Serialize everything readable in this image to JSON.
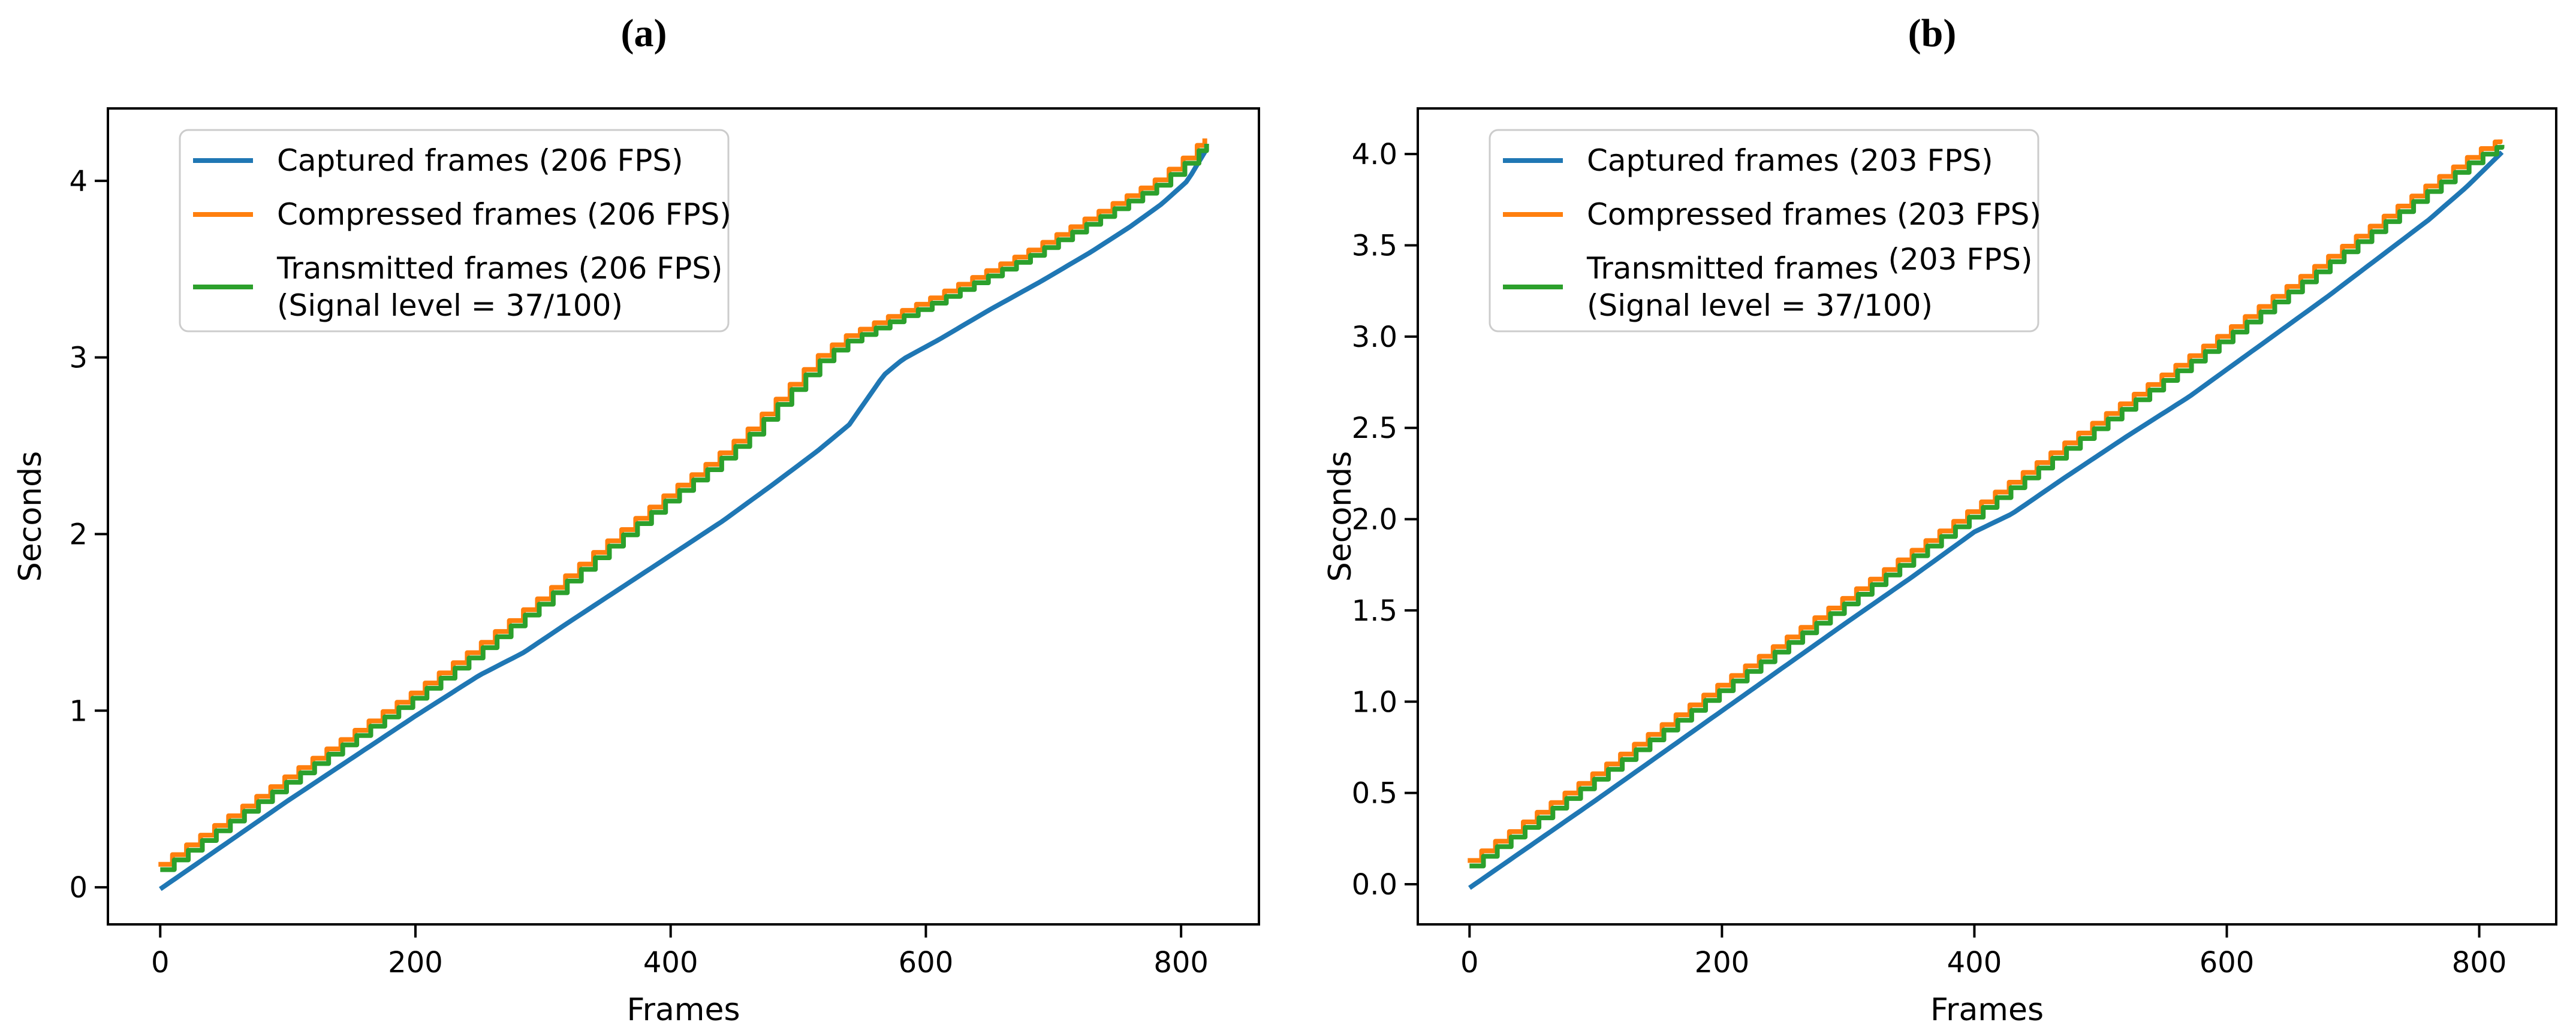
{
  "figure": {
    "background": "#ffffff",
    "text_color": "#000000",
    "spine_color": "#000000",
    "legend_border_color": "#cccccc",
    "legend_fill_color": "#ffffff"
  },
  "chart_data": [
    {
      "type": "line",
      "title": "(a)",
      "xlabel": "Frames",
      "ylabel": "Seconds",
      "xlim": [
        -41,
        861
      ],
      "ylim": [
        -0.21,
        4.41
      ],
      "grid": false,
      "legend_position": "upper left",
      "step_frames": 11,
      "xticks": [
        {
          "value": 0,
          "label": "0"
        },
        {
          "value": 200,
          "label": "200"
        },
        {
          "value": 400,
          "label": "400"
        },
        {
          "value": 600,
          "label": "600"
        },
        {
          "value": 800,
          "label": "800"
        }
      ],
      "yticks": [
        {
          "value": 0,
          "label": "0"
        },
        {
          "value": 1,
          "label": "1"
        },
        {
          "value": 2,
          "label": "2"
        },
        {
          "value": 3,
          "label": "3"
        },
        {
          "value": 4,
          "label": "4"
        }
      ],
      "legend": [
        {
          "color": "#1f77b4",
          "lines": [
            {
              "text": "Captured frames (206 FPS)"
            }
          ]
        },
        {
          "color": "#ff7f0e",
          "lines": [
            {
              "text": "Compressed frames (206 FPS)"
            }
          ]
        },
        {
          "color": "#2ca02c",
          "lines": [
            {
              "text": "Transmitted frames (206 FPS)"
            },
            {
              "text": "(Signal level = 37/100)"
            }
          ]
        }
      ],
      "series": [
        {
          "key": "captured",
          "name": "Captured frames (206 FPS)",
          "color": "#1f77b4",
          "style": "line",
          "points": [
            [
              0,
              -0.01
            ],
            [
              50,
              0.24
            ],
            [
              100,
              0.49
            ],
            [
              150,
              0.73
            ],
            [
              200,
              0.97
            ],
            [
              250,
              1.2
            ],
            [
              285,
              1.33
            ],
            [
              320,
              1.5
            ],
            [
              360,
              1.69
            ],
            [
              400,
              1.88
            ],
            [
              440,
              2.07
            ],
            [
              480,
              2.28
            ],
            [
              515,
              2.47
            ],
            [
              540,
              2.62
            ],
            [
              567,
              2.9
            ],
            [
              582,
              2.99
            ],
            [
              610,
              3.1
            ],
            [
              650,
              3.27
            ],
            [
              690,
              3.43
            ],
            [
              730,
              3.6
            ],
            [
              760,
              3.74
            ],
            [
              785,
              3.87
            ],
            [
              805,
              4.0
            ],
            [
              820,
              4.18
            ]
          ]
        },
        {
          "key": "compressed",
          "name": "Compressed frames (206 FPS)",
          "color": "#ff7f0e",
          "style": "steps",
          "points": [
            [
              0,
              0.13
            ],
            [
              50,
              0.38
            ],
            [
              100,
              0.63
            ],
            [
              150,
              0.87
            ],
            [
              200,
              1.11
            ],
            [
              250,
              1.37
            ],
            [
              300,
              1.65
            ],
            [
              350,
              1.95
            ],
            [
              400,
              2.24
            ],
            [
              430,
              2.4
            ],
            [
              460,
              2.58
            ],
            [
              490,
              2.81
            ],
            [
              515,
              3.0
            ],
            [
              535,
              3.11
            ],
            [
              565,
              3.21
            ],
            [
              600,
              3.32
            ],
            [
              640,
              3.46
            ],
            [
              680,
              3.6
            ],
            [
              720,
              3.76
            ],
            [
              755,
              3.9
            ],
            [
              780,
              4.0
            ],
            [
              800,
              4.11
            ],
            [
              820,
              4.24
            ]
          ]
        },
        {
          "key": "transmitted",
          "name": "Transmitted frames (206 FPS) (Signal level = 37/100)",
          "color": "#2ca02c",
          "style": "steps",
          "points": [
            [
              0,
              0.1
            ],
            [
              50,
              0.35
            ],
            [
              100,
              0.6
            ],
            [
              150,
              0.84
            ],
            [
              200,
              1.08
            ],
            [
              250,
              1.34
            ],
            [
              300,
              1.62
            ],
            [
              350,
              1.92
            ],
            [
              400,
              2.21
            ],
            [
              430,
              2.37
            ],
            [
              460,
              2.55
            ],
            [
              490,
              2.78
            ],
            [
              515,
              2.97
            ],
            [
              535,
              3.08
            ],
            [
              565,
              3.18
            ],
            [
              600,
              3.29
            ],
            [
              640,
              3.43
            ],
            [
              680,
              3.57
            ],
            [
              720,
              3.73
            ],
            [
              755,
              3.87
            ],
            [
              780,
              3.97
            ],
            [
              800,
              4.08
            ],
            [
              820,
              4.21
            ]
          ]
        }
      ]
    },
    {
      "type": "line",
      "title": "(b)",
      "xlabel": "Frames",
      "ylabel": "Seconds",
      "xlim": [
        -41,
        861
      ],
      "ylim": [
        -0.22,
        4.25
      ],
      "grid": false,
      "legend_position": "upper left",
      "step_frames": 11,
      "xticks": [
        {
          "value": 0,
          "label": "0"
        },
        {
          "value": 200,
          "label": "200"
        },
        {
          "value": 400,
          "label": "400"
        },
        {
          "value": 600,
          "label": "600"
        },
        {
          "value": 800,
          "label": "800"
        }
      ],
      "yticks": [
        {
          "value": 0.0,
          "label": "0.0"
        },
        {
          "value": 0.5,
          "label": "0.5"
        },
        {
          "value": 1.0,
          "label": "1.0"
        },
        {
          "value": 1.5,
          "label": "1.5"
        },
        {
          "value": 2.0,
          "label": "2.0"
        },
        {
          "value": 2.5,
          "label": "2.5"
        },
        {
          "value": 3.0,
          "label": "3.0"
        },
        {
          "value": 3.5,
          "label": "3.5"
        },
        {
          "value": 4.0,
          "label": "4.0"
        }
      ],
      "legend": [
        {
          "color": "#1f77b4",
          "lines": [
            {
              "text": "Captured frames (203 FPS)"
            }
          ]
        },
        {
          "color": "#ff7f0e",
          "lines": [
            {
              "text": "Compressed frames (203 FPS)"
            }
          ]
        },
        {
          "color": "#2ca02c",
          "lines": [
            {
              "text": "Transmitted frames ",
              "raised_suffix": "(203 FPS)"
            },
            {
              "text": "(Signal level = 37/100)"
            }
          ]
        }
      ],
      "series": [
        {
          "key": "captured",
          "name": "Captured frames (203 FPS)",
          "color": "#1f77b4",
          "style": "line",
          "points": [
            [
              0,
              -0.02
            ],
            [
              100,
              0.46
            ],
            [
              200,
              0.95
            ],
            [
              300,
              1.44
            ],
            [
              350,
              1.68
            ],
            [
              400,
              1.93
            ],
            [
              430,
              2.03
            ],
            [
              470,
              2.22
            ],
            [
              520,
              2.45
            ],
            [
              570,
              2.67
            ],
            [
              620,
              2.92
            ],
            [
              680,
              3.22
            ],
            [
              720,
              3.43
            ],
            [
              760,
              3.64
            ],
            [
              790,
              3.82
            ],
            [
              818,
              4.01
            ]
          ]
        },
        {
          "key": "compressed",
          "name": "Compressed frames (203 FPS)",
          "color": "#ff7f0e",
          "style": "steps",
          "points": [
            [
              0,
              0.13
            ],
            [
              100,
              0.61
            ],
            [
              200,
              1.1
            ],
            [
              300,
              1.58
            ],
            [
              400,
              2.06
            ],
            [
              500,
              2.55
            ],
            [
              600,
              3.03
            ],
            [
              650,
              3.28
            ],
            [
              700,
              3.53
            ],
            [
              760,
              3.83
            ],
            [
              800,
              4.02
            ],
            [
              818,
              4.08
            ]
          ]
        },
        {
          "key": "transmitted",
          "name": "Transmitted frames (203 FPS) (Signal level = 37/100)",
          "color": "#2ca02c",
          "style": "steps",
          "points": [
            [
              0,
              0.1
            ],
            [
              100,
              0.58
            ],
            [
              200,
              1.07
            ],
            [
              300,
              1.55
            ],
            [
              400,
              2.03
            ],
            [
              500,
              2.52
            ],
            [
              600,
              3.0
            ],
            [
              650,
              3.25
            ],
            [
              700,
              3.5
            ],
            [
              760,
              3.8
            ],
            [
              800,
              3.99
            ],
            [
              818,
              4.05
            ]
          ]
        }
      ]
    }
  ]
}
